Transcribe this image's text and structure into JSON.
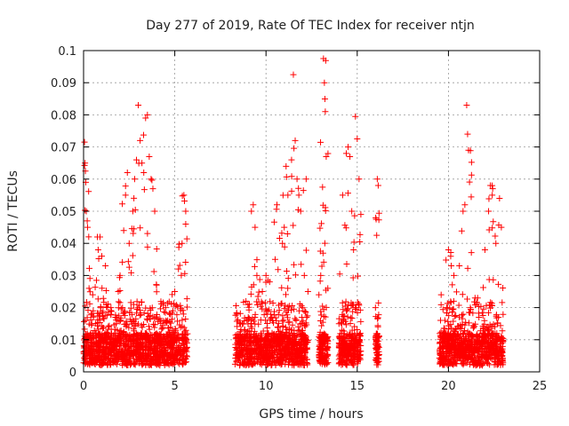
{
  "chart_data": {
    "type": "scatter",
    "title": "Day 277 of 2019, Rate Of TEC Index for receiver ntjn",
    "xlabel": "GPS time / hours",
    "ylabel": "ROTI / TECUs",
    "xlim": [
      0,
      25
    ],
    "ylim": [
      0,
      0.1
    ],
    "xticks": [
      "0",
      "5",
      "10",
      "15",
      "20",
      "25"
    ],
    "yticks": [
      "0",
      "0.01",
      "0.02",
      "0.03",
      "0.04",
      "0.05",
      "0.06",
      "0.07",
      "0.08",
      "0.09",
      "0.1"
    ],
    "grid": true,
    "marker": "+",
    "color": "#ff0000",
    "observed_time_windows_hours": [
      [
        0.0,
        5.7
      ],
      [
        8.3,
        12.3
      ],
      [
        12.9,
        13.4
      ],
      [
        14.0,
        15.2
      ],
      [
        16.0,
        16.2
      ],
      [
        19.5,
        23.0
      ]
    ],
    "series": [
      {
        "name": "ROTI",
        "points": [
          [
            0.05,
            0.0715
          ],
          [
            0.08,
            0.065
          ],
          [
            0.1,
            0.0625
          ],
          [
            0.12,
            0.059
          ],
          [
            0.15,
            0.05
          ],
          [
            0.2,
            0.047
          ],
          [
            0.22,
            0.045
          ],
          [
            0.3,
            0.026
          ],
          [
            0.5,
            0.024
          ],
          [
            0.8,
            0.038
          ],
          [
            0.9,
            0.042
          ],
          [
            1.0,
            0.036
          ],
          [
            1.2,
            0.033
          ],
          [
            1.5,
            0.02
          ],
          [
            1.9,
            0.025
          ],
          [
            2.0,
            0.03
          ],
          [
            2.2,
            0.044
          ],
          [
            2.3,
            0.055
          ],
          [
            2.4,
            0.062
          ],
          [
            2.5,
            0.04
          ],
          [
            2.7,
            0.05
          ],
          [
            2.8,
            0.06
          ],
          [
            2.9,
            0.066
          ],
          [
            3.0,
            0.083
          ],
          [
            3.1,
            0.072
          ],
          [
            3.2,
            0.065
          ],
          [
            3.3,
            0.062
          ],
          [
            3.4,
            0.079
          ],
          [
            3.5,
            0.08
          ],
          [
            3.6,
            0.067
          ],
          [
            3.7,
            0.06
          ],
          [
            3.8,
            0.057
          ],
          [
            3.9,
            0.05
          ],
          [
            4.0,
            0.027
          ],
          [
            4.5,
            0.02
          ],
          [
            4.9,
            0.019
          ],
          [
            5.0,
            0.025
          ],
          [
            5.2,
            0.032
          ],
          [
            5.4,
            0.04
          ],
          [
            5.5,
            0.055
          ],
          [
            5.6,
            0.05
          ],
          [
            5.6,
            0.046
          ],
          [
            8.4,
            0.018
          ],
          [
            8.6,
            0.015
          ],
          [
            8.9,
            0.022
          ],
          [
            9.2,
            0.05
          ],
          [
            9.3,
            0.052
          ],
          [
            9.4,
            0.045
          ],
          [
            9.5,
            0.03
          ],
          [
            9.8,
            0.025
          ],
          [
            10.0,
            0.03
          ],
          [
            10.2,
            0.028
          ],
          [
            10.5,
            0.035
          ],
          [
            10.6,
            0.052
          ],
          [
            10.9,
            0.04
          ],
          [
            11.0,
            0.045
          ],
          [
            11.1,
            0.064
          ],
          [
            11.2,
            0.055
          ],
          [
            11.4,
            0.066
          ],
          [
            11.5,
            0.0925
          ],
          [
            11.6,
            0.072
          ],
          [
            11.7,
            0.06
          ],
          [
            11.8,
            0.055
          ],
          [
            11.9,
            0.05
          ],
          [
            12.0,
            0.02
          ],
          [
            12.1,
            0.03
          ],
          [
            12.2,
            0.06
          ],
          [
            12.3,
            0.025
          ],
          [
            12.9,
            0.024
          ],
          [
            13.0,
            0.03
          ],
          [
            13.1,
            0.0575
          ],
          [
            13.15,
            0.0975
          ],
          [
            13.2,
            0.09
          ],
          [
            13.25,
            0.081
          ],
          [
            13.3,
            0.067
          ],
          [
            14.0,
            0.015
          ],
          [
            14.2,
            0.055
          ],
          [
            14.4,
            0.068
          ],
          [
            14.5,
            0.07
          ],
          [
            14.6,
            0.067
          ],
          [
            14.7,
            0.05
          ],
          [
            14.8,
            0.038
          ],
          [
            14.9,
            0.0795
          ],
          [
            15.0,
            0.0725
          ],
          [
            15.1,
            0.06
          ],
          [
            15.2,
            0.049
          ],
          [
            16.0,
            0.02
          ],
          [
            16.1,
            0.06
          ],
          [
            16.15,
            0.058
          ],
          [
            19.6,
            0.024
          ],
          [
            19.9,
            0.02
          ],
          [
            20.0,
            0.038
          ],
          [
            20.3,
            0.03
          ],
          [
            20.6,
            0.033
          ],
          [
            20.8,
            0.05
          ],
          [
            20.9,
            0.052
          ],
          [
            21.0,
            0.083
          ],
          [
            21.05,
            0.074
          ],
          [
            21.1,
            0.069
          ],
          [
            21.2,
            0.02
          ],
          [
            21.6,
            0.023
          ],
          [
            22.0,
            0.038
          ],
          [
            22.2,
            0.05
          ],
          [
            22.3,
            0.058
          ],
          [
            22.4,
            0.055
          ],
          [
            22.6,
            0.04
          ],
          [
            22.8,
            0.054
          ],
          [
            22.9,
            0.045
          ]
        ]
      }
    ]
  }
}
